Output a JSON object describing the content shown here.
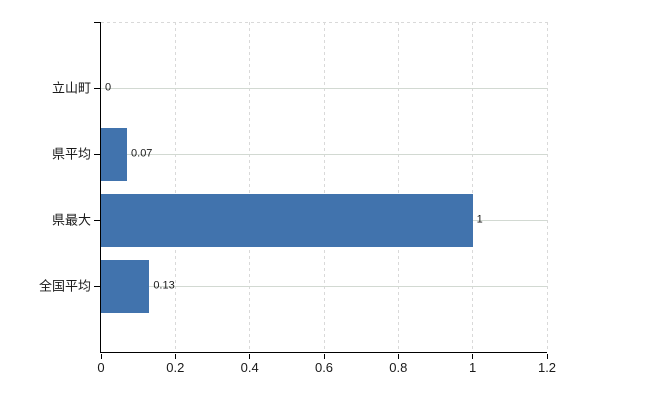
{
  "chart_data": {
    "type": "bar",
    "orientation": "horizontal",
    "title": "",
    "xlabel": "",
    "ylabel": "",
    "categories": [
      "立山町",
      "県平均",
      "県最大",
      "全国平均"
    ],
    "values": [
      0,
      0.07,
      1,
      0.13
    ],
    "value_labels": [
      "0",
      "0.07",
      "1",
      "0.13"
    ],
    "x_ticks": [
      0,
      0.2,
      0.4,
      0.6,
      0.8,
      1,
      1.2
    ],
    "x_tick_labels": [
      "0",
      "0.2",
      "0.4",
      "0.6",
      "0.8",
      "1",
      "1.2"
    ],
    "xlim": [
      0,
      1.2
    ],
    "grid": true,
    "legend": null,
    "colors": {
      "bar": "#4173ad",
      "gridline_vertical": "#d9d9d9",
      "gridline_horizontal": "#d2d9d2",
      "axis": "#000000",
      "text": "#1a1a1a",
      "background": "#ffffff"
    }
  }
}
